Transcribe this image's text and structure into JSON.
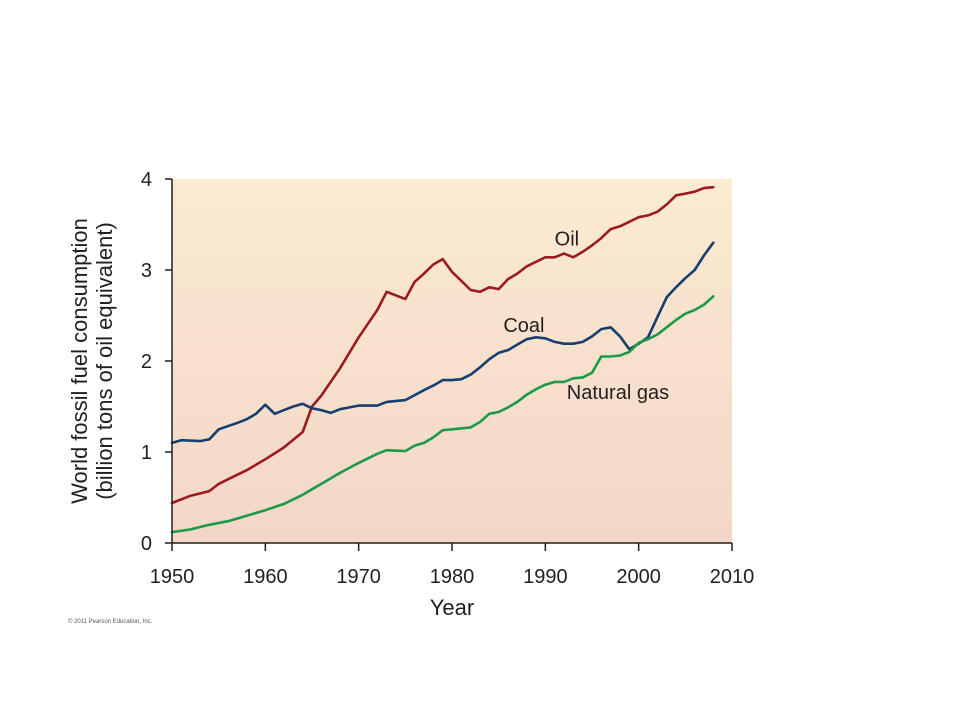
{
  "copyright": "© 2011 Pearson Education, Inc.",
  "chart_data": {
    "type": "line",
    "title": "",
    "xlabel": "Year",
    "ylabel_lines": [
      "World fossil fuel consumption",
      "(billion tons of oil equivalent)"
    ],
    "xlim": [
      1950,
      2010
    ],
    "ylim": [
      0,
      4
    ],
    "xticks": [
      1950,
      1960,
      1970,
      1980,
      1990,
      2000,
      2010
    ],
    "yticks": [
      0,
      1,
      2,
      3,
      4
    ],
    "grid": false,
    "legend": "none (series labeled directly on lines)",
    "background_gradient": [
      "#fbebd1",
      "#f3d6c8"
    ],
    "series": [
      {
        "name": "Oil",
        "color": "#9b1b1f",
        "x": [
          1950,
          1952,
          1954,
          1955,
          1956,
          1958,
          1960,
          1962,
          1964,
          1965,
          1966,
          1968,
          1970,
          1972,
          1973,
          1975,
          1976,
          1977,
          1978,
          1979,
          1980,
          1982,
          1983,
          1984,
          1985,
          1986,
          1987,
          1988,
          1989,
          1990,
          1991,
          1992,
          1993,
          1994,
          1995,
          1996,
          1997,
          1998,
          1999,
          2000,
          2001,
          2002,
          2003,
          2004,
          2005,
          2006,
          2007,
          2008
        ],
        "values": [
          0.44,
          0.52,
          0.57,
          0.65,
          0.7,
          0.8,
          0.92,
          1.05,
          1.22,
          1.5,
          1.62,
          1.92,
          2.26,
          2.56,
          2.76,
          2.68,
          2.87,
          2.96,
          3.06,
          3.12,
          2.98,
          2.78,
          2.76,
          2.81,
          2.79,
          2.9,
          2.96,
          3.04,
          3.09,
          3.14,
          3.14,
          3.18,
          3.14,
          3.2,
          3.27,
          3.35,
          3.45,
          3.48,
          3.53,
          3.58,
          3.6,
          3.64,
          3.72,
          3.82,
          3.84,
          3.86,
          3.9,
          3.91
        ]
      },
      {
        "name": "Coal",
        "color": "#173e70",
        "x": [
          1950,
          1951,
          1953,
          1954,
          1955,
          1957,
          1958,
          1959,
          1960,
          1961,
          1962,
          1963,
          1964,
          1965,
          1966,
          1967,
          1968,
          1970,
          1972,
          1973,
          1975,
          1977,
          1978,
          1979,
          1980,
          1981,
          1982,
          1983,
          1984,
          1985,
          1986,
          1987,
          1988,
          1989,
          1990,
          1991,
          1992,
          1993,
          1994,
          1995,
          1996,
          1997,
          1998,
          1999,
          2000,
          2001,
          2002,
          2003,
          2004,
          2005,
          2006,
          2007,
          2008
        ],
        "values": [
          1.1,
          1.13,
          1.12,
          1.14,
          1.25,
          1.32,
          1.36,
          1.42,
          1.52,
          1.42,
          1.46,
          1.5,
          1.53,
          1.48,
          1.46,
          1.43,
          1.47,
          1.51,
          1.51,
          1.55,
          1.57,
          1.68,
          1.73,
          1.79,
          1.79,
          1.8,
          1.85,
          1.93,
          2.02,
          2.09,
          2.12,
          2.18,
          2.24,
          2.26,
          2.25,
          2.21,
          2.19,
          2.19,
          2.21,
          2.27,
          2.35,
          2.37,
          2.27,
          2.13,
          2.19,
          2.26,
          2.48,
          2.7,
          2.81,
          2.91,
          3.0,
          3.16,
          3.3
        ]
      },
      {
        "name": "Natural gas",
        "color": "#1c9a48",
        "x": [
          1950,
          1952,
          1954,
          1956,
          1958,
          1960,
          1962,
          1964,
          1966,
          1968,
          1970,
          1972,
          1973,
          1975,
          1976,
          1977,
          1978,
          1979,
          1980,
          1982,
          1983,
          1984,
          1985,
          1986,
          1987,
          1988,
          1989,
          1990,
          1991,
          1992,
          1993,
          1994,
          1995,
          1996,
          1997,
          1998,
          1999,
          2000,
          2001,
          2002,
          2003,
          2004,
          2005,
          2006,
          2007,
          2008
        ],
        "values": [
          0.12,
          0.15,
          0.2,
          0.24,
          0.3,
          0.36,
          0.43,
          0.53,
          0.65,
          0.77,
          0.88,
          0.98,
          1.02,
          1.01,
          1.07,
          1.1,
          1.16,
          1.24,
          1.25,
          1.27,
          1.33,
          1.42,
          1.44,
          1.49,
          1.55,
          1.63,
          1.69,
          1.74,
          1.77,
          1.77,
          1.81,
          1.82,
          1.87,
          2.05,
          2.05,
          2.06,
          2.1,
          2.2,
          2.24,
          2.29,
          2.37,
          2.45,
          2.52,
          2.56,
          2.62,
          2.71
        ]
      }
    ],
    "series_labels": [
      {
        "text": "Oil",
        "at": [
          1991.0,
          3.27
        ]
      },
      {
        "text": "Coal",
        "at": [
          1985.5,
          2.32
        ]
      },
      {
        "text": "Natural gas",
        "at": [
          1992.3,
          1.58
        ]
      }
    ]
  }
}
